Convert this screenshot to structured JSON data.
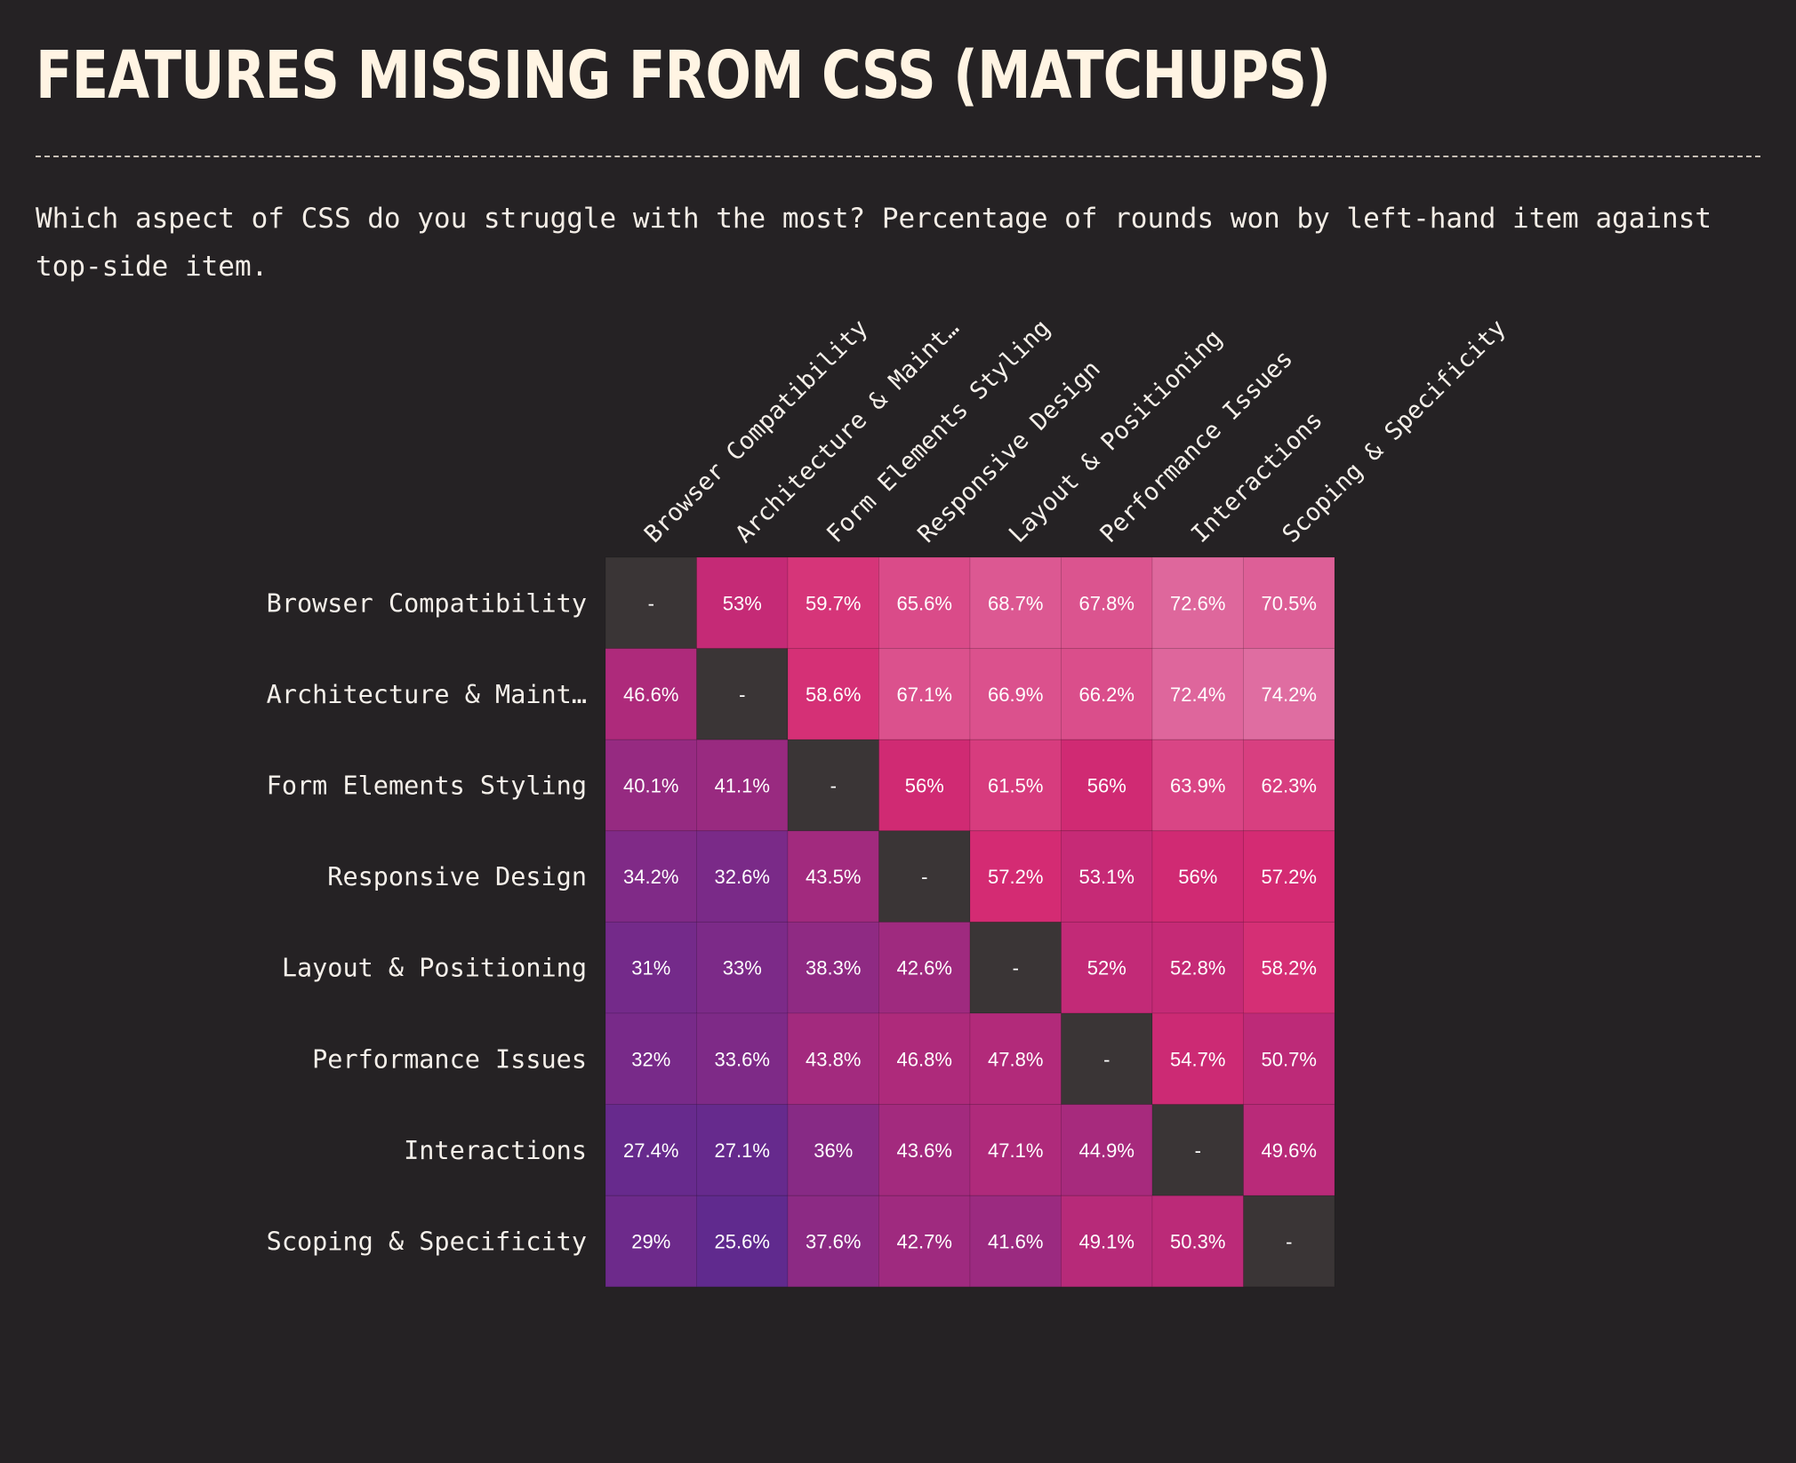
{
  "page": {
    "title": "FEATURES MISSING FROM CSS (MATCHUPS)",
    "subtitle": "Which aspect of CSS do you struggle with the most? Percentage of rounds won by left-hand item against top-side item."
  },
  "colors": {
    "background": "#252224",
    "diagonal": "#3a3536",
    "title": "#fff4e3",
    "scale_low": "#5e2a8f",
    "scale_mid": "#d42a72",
    "scale_high": "#e070a3"
  },
  "chart_data": {
    "type": "heatmap",
    "title": "FEATURES MISSING FROM CSS (MATCHUPS)",
    "subtitle": "Which aspect of CSS do you struggle with the most? Percentage of rounds won by left-hand item against top-side item.",
    "rows": [
      "Browser Compatibility",
      "Architecture & Maint…",
      "Form Elements Styling",
      "Responsive Design",
      "Layout & Positioning",
      "Performance Issues",
      "Interactions",
      "Scoping & Specificity"
    ],
    "columns": [
      "Browser Compatibility",
      "Architecture & Maint…",
      "Form Elements Styling",
      "Responsive Design",
      "Layout & Positioning",
      "Performance Issues",
      "Interactions",
      "Scoping & Specificity"
    ],
    "values": [
      [
        null,
        53,
        59.7,
        65.6,
        68.7,
        67.8,
        72.6,
        70.5
      ],
      [
        46.6,
        null,
        58.6,
        67.1,
        66.9,
        66.2,
        72.4,
        74.2
      ],
      [
        40.1,
        41.1,
        null,
        56,
        61.5,
        56,
        63.9,
        62.3
      ],
      [
        34.2,
        32.6,
        43.5,
        null,
        57.2,
        53.1,
        56,
        57.2
      ],
      [
        31,
        33,
        38.3,
        42.6,
        null,
        52,
        52.8,
        58.2
      ],
      [
        32,
        33.6,
        43.8,
        46.8,
        47.8,
        null,
        54.7,
        50.7
      ],
      [
        27.4,
        27.1,
        36,
        43.6,
        47.1,
        44.9,
        null,
        49.6
      ],
      [
        29,
        25.6,
        37.6,
        42.7,
        41.6,
        49.1,
        50.3,
        null
      ]
    ],
    "empty_label": "-",
    "value_suffix": "%"
  }
}
